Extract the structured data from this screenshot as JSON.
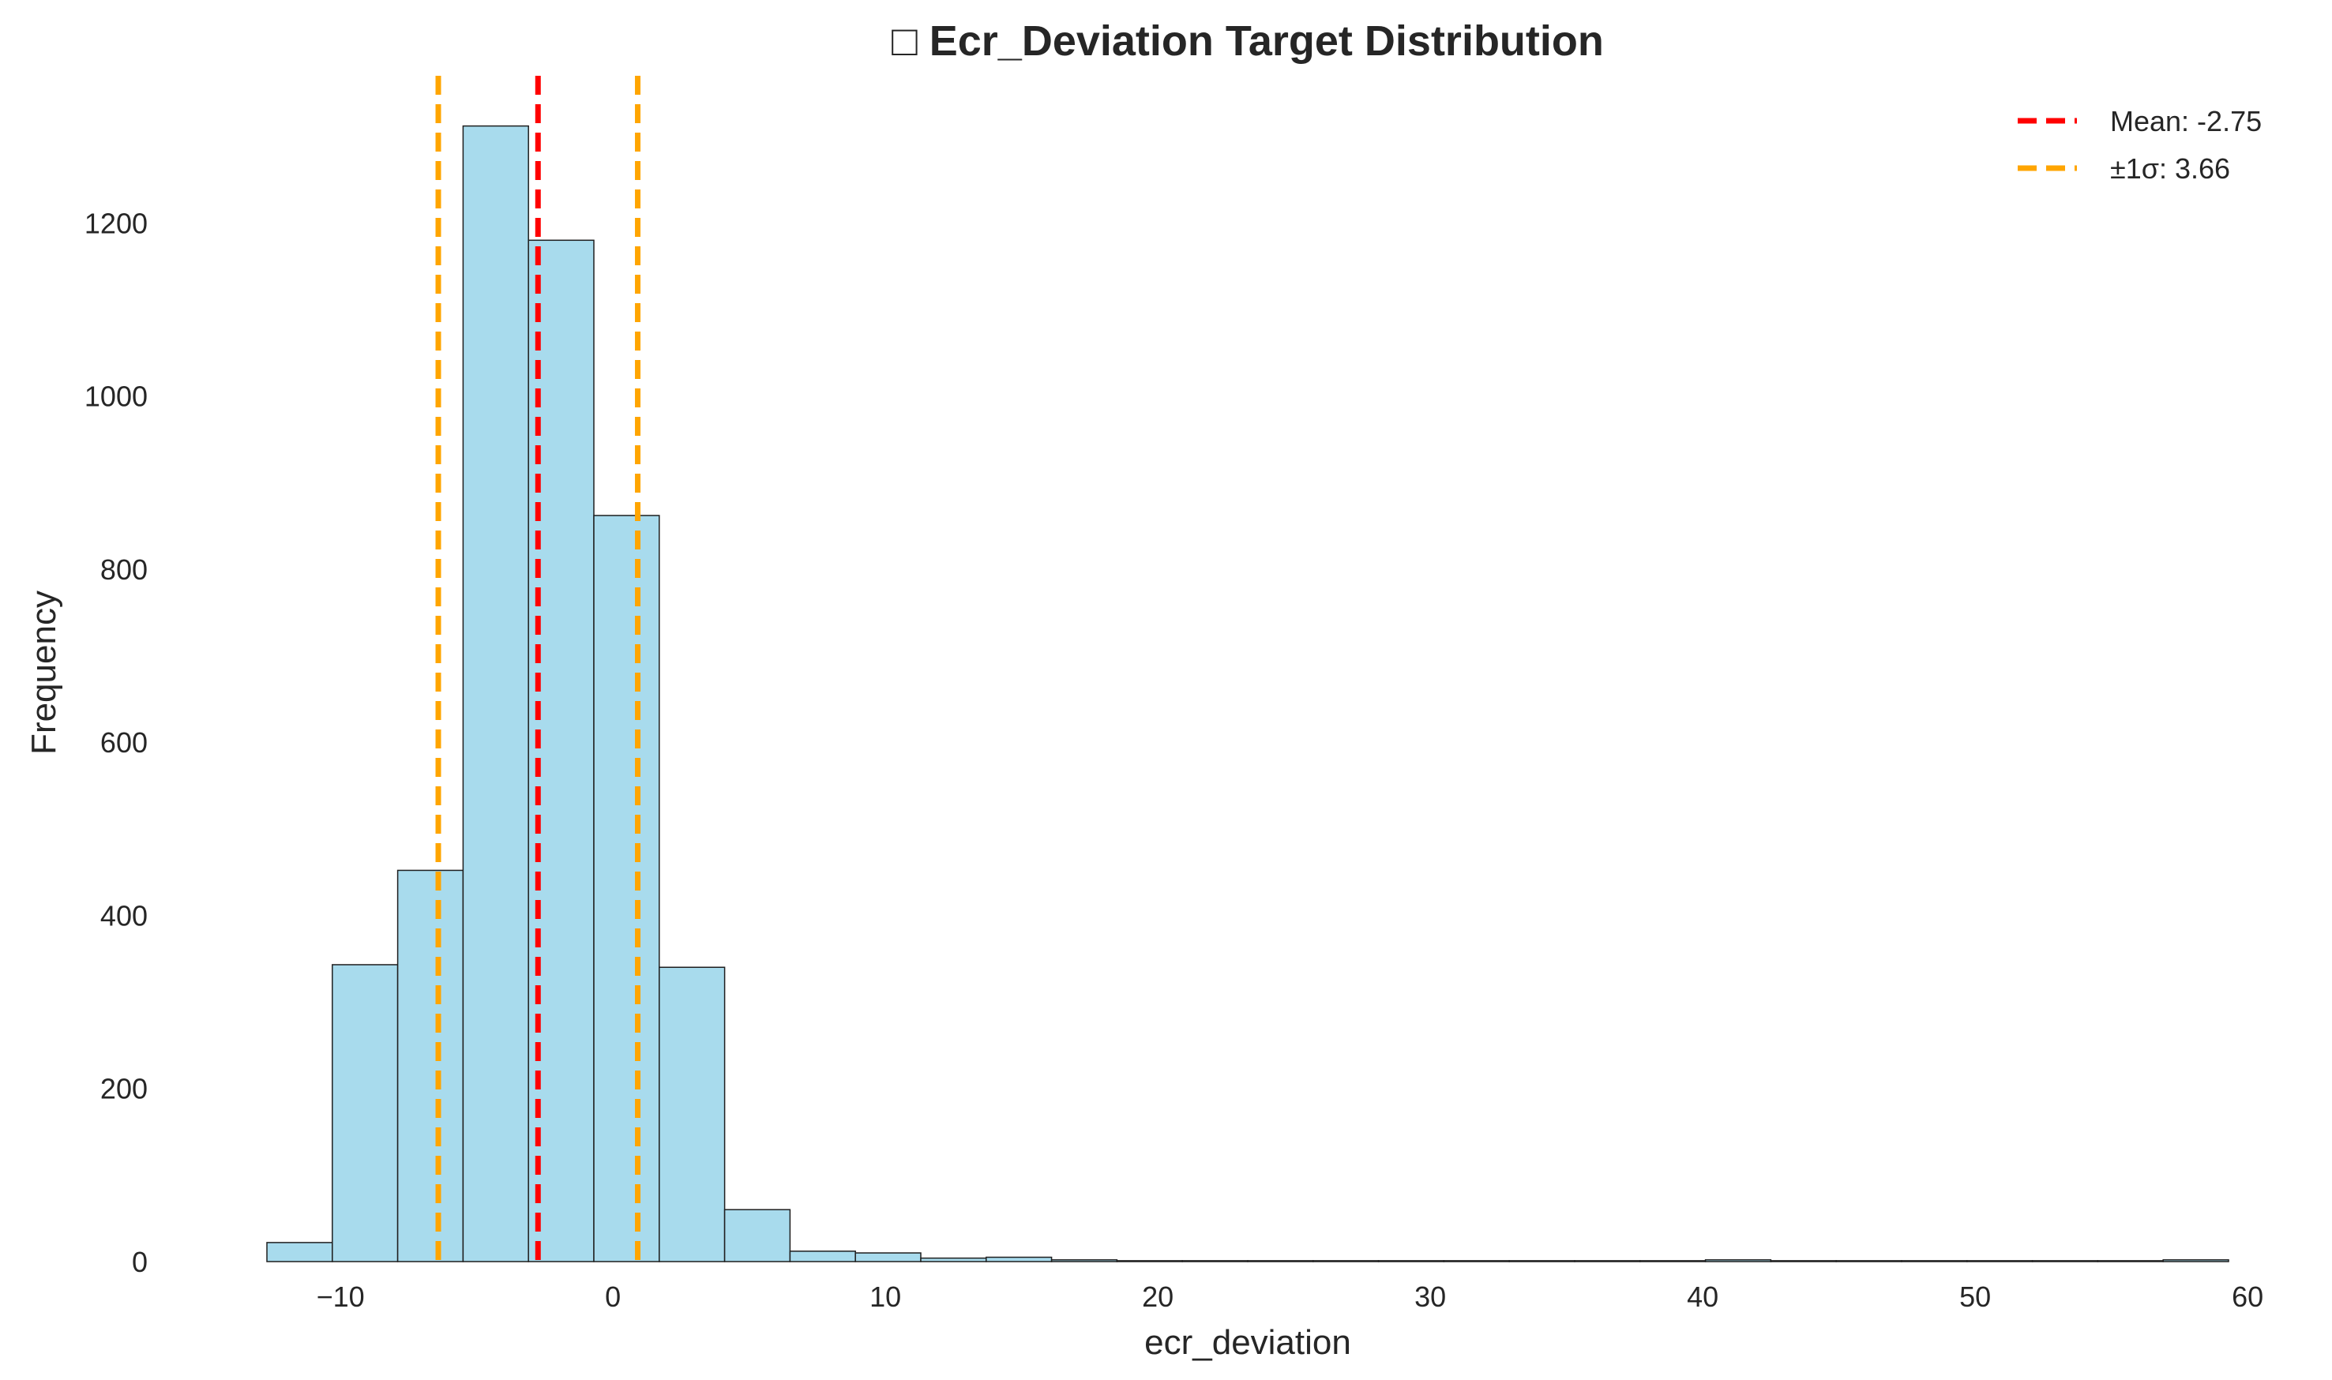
{
  "chart_data": {
    "type": "bar",
    "title": "□ Ecr_Deviation Target Distribution",
    "xlabel": "ecr_deviation",
    "ylabel": "Frequency",
    "xlim": [
      -12.7,
      59.3
    ],
    "ylim": [
      0,
      1370
    ],
    "x_ticks": [
      -10,
      0,
      10,
      20,
      30,
      40,
      50,
      60
    ],
    "x_tick_labels": [
      "−10",
      "0",
      "10",
      "20",
      "30",
      "40",
      "50",
      "60"
    ],
    "y_ticks": [
      0,
      200,
      400,
      600,
      800,
      1000,
      1200
    ],
    "y_tick_labels": [
      "0",
      "200",
      "400",
      "600",
      "800",
      "1000",
      "1200"
    ],
    "bin_start": -12.7,
    "bin_width": 2.4,
    "counts": [
      22,
      343,
      452,
      1312,
      1180,
      862,
      340,
      60,
      12,
      10,
      4,
      5,
      2,
      1,
      1,
      1,
      1,
      1,
      1,
      1,
      1,
      1,
      2,
      1,
      1,
      1,
      1,
      1,
      1,
      2
    ],
    "grid": false,
    "legend_position": "top-right",
    "colors": {
      "bar_fill": "#a8dbed",
      "bar_edge": "#1f1f1f",
      "mean_line": "#ff0000",
      "sigma_line": "#ffa500"
    },
    "reference_lines": [
      {
        "name": "Mean: -2.75",
        "x": -2.75,
        "color": "#ff0000"
      },
      {
        "name": "±1σ: 3.66",
        "x": -6.41,
        "color": "#ffa500"
      },
      {
        "name": "±1σ: 3.66",
        "x": 0.91,
        "color": "#ffa500"
      }
    ],
    "legend": [
      {
        "label": "Mean: -2.75",
        "color": "#ff0000"
      },
      {
        "label": "±1σ: 3.66",
        "color": "#ffa500"
      }
    ]
  }
}
